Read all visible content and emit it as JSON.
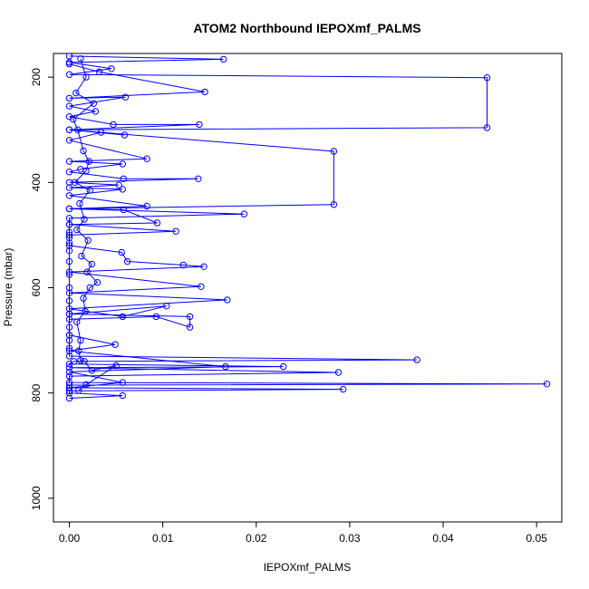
{
  "chart_data": {
    "type": "scatter",
    "title": "ATOM2 Northbound IEPOXmf_PALMS",
    "xlabel": "IEPOXmf_PALMS",
    "ylabel": "Pressure (mbar)",
    "xlim": [
      -0.0017,
      0.0527
    ],
    "ylim": [
      1045,
      155
    ],
    "y_reversed": true,
    "x_ticks": [
      0.0,
      0.01,
      0.02,
      0.03,
      0.04,
      0.05
    ],
    "x_tick_labels": [
      "0.00",
      "0.01",
      "0.02",
      "0.03",
      "0.04",
      "0.05"
    ],
    "y_ticks": [
      200,
      400,
      600,
      800,
      1000
    ],
    "y_tick_labels": [
      "200",
      "400",
      "600",
      "800",
      "1000"
    ],
    "grid": false,
    "legend": "none",
    "series": [
      {
        "color": "#0000ff",
        "marker": "open-circle",
        "line": true,
        "points": [
          [
            0.0,
            160
          ],
          [
            0.0165,
            166
          ],
          [
            0.0,
            172
          ],
          [
            0.0045,
            184
          ],
          [
            0.0,
            195
          ],
          [
            0.0447,
            201
          ],
          [
            0.0447,
            296
          ],
          [
            0.0,
            300
          ],
          [
            0.0283,
            341
          ],
          [
            0.0283,
            442
          ],
          [
            0.0,
            450
          ],
          [
            0.0187,
            460
          ],
          [
            0.0,
            468
          ],
          [
            0.0,
            480
          ],
          [
            0.0,
            495
          ],
          [
            0.0,
            505
          ],
          [
            0.0,
            515
          ],
          [
            0.0,
            530
          ],
          [
            0.0,
            550
          ],
          [
            0.0,
            575
          ],
          [
            0.0,
            600
          ],
          [
            0.0,
            625
          ],
          [
            0.0,
            650
          ],
          [
            0.0,
            675
          ],
          [
            0.0,
            690
          ],
          [
            0.0,
            700
          ],
          [
            0.0,
            715
          ],
          [
            0.0,
            730
          ],
          [
            0.0372,
            737
          ],
          [
            0.0005,
            740
          ],
          [
            0.0,
            745
          ],
          [
            0.0229,
            750
          ],
          [
            0.0,
            752
          ],
          [
            0.0288,
            761
          ],
          [
            0.0,
            768
          ],
          [
            0.0,
            780
          ],
          [
            0.0511,
            783
          ],
          [
            0.0,
            785
          ],
          [
            0.0,
            790
          ],
          [
            0.0293,
            793
          ],
          [
            0.0,
            796
          ],
          [
            0.0,
            800
          ],
          [
            0.0057,
            805
          ],
          [
            0.0,
            810
          ]
        ]
      },
      {
        "color": "#0000ff",
        "marker": "open-circle",
        "line": true,
        "points": [
          [
            0.0,
            175
          ],
          [
            0.0032,
            190
          ],
          [
            0.0145,
            228
          ],
          [
            0.0,
            240
          ],
          [
            0.006,
            238
          ],
          [
            0.0,
            255
          ],
          [
            0.0028,
            265
          ],
          [
            0.0,
            275
          ],
          [
            0.0047,
            290
          ],
          [
            0.0139,
            290
          ],
          [
            0.0,
            300
          ],
          [
            0.0059,
            310
          ],
          [
            0.0034,
            305
          ],
          [
            0.0,
            320
          ],
          [
            0.0083,
            355
          ],
          [
            0.0,
            360
          ],
          [
            0.0057,
            365
          ],
          [
            0.0012,
            375
          ],
          [
            0.0,
            380
          ],
          [
            0.0058,
            393
          ],
          [
            0.0138,
            393
          ],
          [
            0.0,
            400
          ],
          [
            0.0053,
            405
          ],
          [
            0.0,
            410
          ],
          [
            0.0057,
            413
          ],
          [
            0.0,
            425
          ],
          [
            0.0083,
            445
          ],
          [
            0.0,
            450
          ],
          [
            0.0058,
            452
          ],
          [
            0.0094,
            477
          ],
          [
            0.0,
            480
          ],
          [
            0.0114,
            493
          ],
          [
            0.0,
            500
          ],
          [
            0.0,
            520
          ],
          [
            0.0056,
            533
          ],
          [
            0.0062,
            550
          ],
          [
            0.0122,
            557
          ],
          [
            0.0144,
            560
          ],
          [
            0.0,
            570
          ],
          [
            0.0141,
            598
          ],
          [
            0.0,
            610
          ],
          [
            0.0169,
            623
          ],
          [
            0.0,
            640
          ],
          [
            0.0057,
            655
          ],
          [
            0.0104,
            635
          ],
          [
            0.0,
            650
          ],
          [
            0.0129,
            655
          ],
          [
            0.0129,
            675
          ],
          [
            0.0093,
            655
          ],
          [
            0.0,
            660
          ],
          [
            0.0,
            690
          ],
          [
            0.0049,
            708
          ],
          [
            0.0,
            720
          ],
          [
            0.0167,
            750
          ],
          [
            0.0,
            760
          ],
          [
            0.0057,
            780
          ],
          [
            0.0,
            790
          ]
        ]
      },
      {
        "color": "#0000ff",
        "marker": "open-circle",
        "line": true,
        "points": [
          [
            0.0012,
            165
          ],
          [
            0.0018,
            200
          ],
          [
            0.0007,
            230
          ],
          [
            0.0026,
            250
          ],
          [
            0.0004,
            280
          ],
          [
            0.0009,
            300
          ],
          [
            0.0015,
            340
          ],
          [
            0.0021,
            360
          ],
          [
            0.0018,
            378
          ],
          [
            0.0006,
            400
          ],
          [
            0.0022,
            415
          ],
          [
            0.0011,
            440
          ],
          [
            0.0016,
            470
          ],
          [
            0.0008,
            490
          ],
          [
            0.002,
            510
          ],
          [
            0.0013,
            540
          ],
          [
            0.0024,
            555
          ],
          [
            0.0019,
            570
          ],
          [
            0.003,
            590
          ],
          [
            0.0022,
            600
          ],
          [
            0.0015,
            620
          ],
          [
            0.0017,
            645
          ],
          [
            0.0008,
            665
          ],
          [
            0.0012,
            700
          ],
          [
            0.001,
            720
          ],
          [
            0.0012,
            738
          ],
          [
            0.0016,
            740
          ],
          [
            0.0024,
            757
          ],
          [
            0.005,
            748
          ],
          [
            0.0018,
            784
          ],
          [
            0.001,
            795
          ]
        ]
      }
    ]
  }
}
